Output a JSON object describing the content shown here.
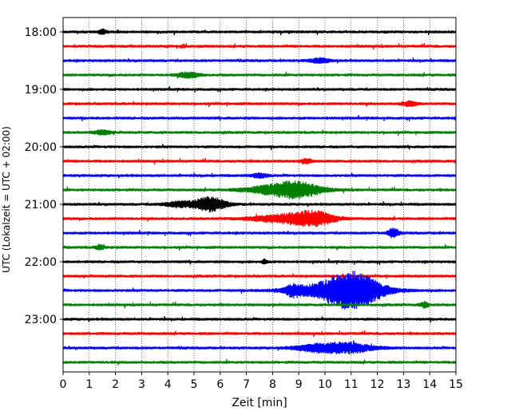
{
  "chart_data": {
    "type": "line",
    "title": "",
    "xlabel": "Zeit  [min]",
    "ylabel": "UTC (Lokalzeit = UTC + 02:00)",
    "xlim": [
      0,
      15
    ],
    "x_ticks": [
      0,
      1,
      2,
      3,
      4,
      5,
      6,
      7,
      8,
      9,
      10,
      11,
      12,
      13,
      14,
      15
    ],
    "y_ticks": [
      "18:00",
      "19:00",
      "20:00",
      "21:00",
      "22:00",
      "23:00"
    ],
    "grid": {
      "vertical": true,
      "style": "dotted"
    },
    "trace_colors": [
      "#000000",
      "#ff0000",
      "#0000ff",
      "#008000"
    ],
    "trace_interval_minutes": 15,
    "traces": [
      {
        "start": "18:00",
        "events": [
          {
            "t": 1.5,
            "amp": 1.3,
            "dur": 0.15
          }
        ]
      },
      {
        "start": "18:15",
        "events": [
          {
            "t": 4.6,
            "amp": 1.3,
            "dur": 0.05
          }
        ]
      },
      {
        "start": "18:30",
        "events": [
          {
            "t": 9.8,
            "amp": 1.2,
            "dur": 0.4
          }
        ]
      },
      {
        "start": "18:45",
        "events": [
          {
            "t": 4.8,
            "amp": 1.5,
            "dur": 0.4
          }
        ]
      },
      {
        "start": "19:00",
        "events": []
      },
      {
        "start": "19:15",
        "events": [
          {
            "t": 13.2,
            "amp": 1.2,
            "dur": 0.3
          }
        ]
      },
      {
        "start": "19:30",
        "events": []
      },
      {
        "start": "19:45",
        "events": [
          {
            "t": 1.5,
            "amp": 1.2,
            "dur": 0.3
          }
        ]
      },
      {
        "start": "20:00",
        "events": []
      },
      {
        "start": "20:15",
        "events": [
          {
            "t": 9.3,
            "amp": 1.2,
            "dur": 0.2
          }
        ]
      },
      {
        "start": "20:30",
        "events": [
          {
            "t": 7.5,
            "amp": 1.2,
            "dur": 0.3
          }
        ]
      },
      {
        "start": "20:45",
        "events": [
          {
            "t": 8.3,
            "amp": 3.0,
            "dur": 1.2
          },
          {
            "t": 9.1,
            "amp": 2.5,
            "dur": 0.8
          }
        ]
      },
      {
        "start": "21:00",
        "events": [
          {
            "t": 5.6,
            "amp": 3.8,
            "dur": 0.6
          },
          {
            "t": 4.5,
            "amp": 1.5,
            "dur": 0.6
          }
        ]
      },
      {
        "start": "21:15",
        "events": [
          {
            "t": 9.6,
            "amp": 3.5,
            "dur": 0.8
          },
          {
            "t": 8.4,
            "amp": 2.0,
            "dur": 1.2
          }
        ]
      },
      {
        "start": "21:30",
        "events": [
          {
            "t": 12.6,
            "amp": 2.5,
            "dur": 0.2
          }
        ]
      },
      {
        "start": "21:45",
        "events": [
          {
            "t": 1.4,
            "amp": 1.4,
            "dur": 0.15
          }
        ]
      },
      {
        "start": "22:00",
        "events": [
          {
            "t": 7.7,
            "amp": 1.3,
            "dur": 0.1
          }
        ]
      },
      {
        "start": "22:15",
        "events": []
      },
      {
        "start": "22:30",
        "events": [
          {
            "t": 11.1,
            "amp": 7.0,
            "dur": 1.0
          },
          {
            "t": 10.5,
            "amp": 4.0,
            "dur": 1.6
          },
          {
            "t": 8.8,
            "amp": 2.5,
            "dur": 0.3
          }
        ]
      },
      {
        "start": "22:45",
        "events": [
          {
            "t": 13.8,
            "amp": 1.6,
            "dur": 0.15
          }
        ]
      },
      {
        "start": "23:00",
        "events": []
      },
      {
        "start": "23:15",
        "events": []
      },
      {
        "start": "23:30",
        "events": [
          {
            "t": 10.8,
            "amp": 2.8,
            "dur": 1.0
          },
          {
            "t": 9.6,
            "amp": 1.5,
            "dur": 0.8
          }
        ]
      },
      {
        "start": "23:45",
        "events": []
      }
    ]
  }
}
